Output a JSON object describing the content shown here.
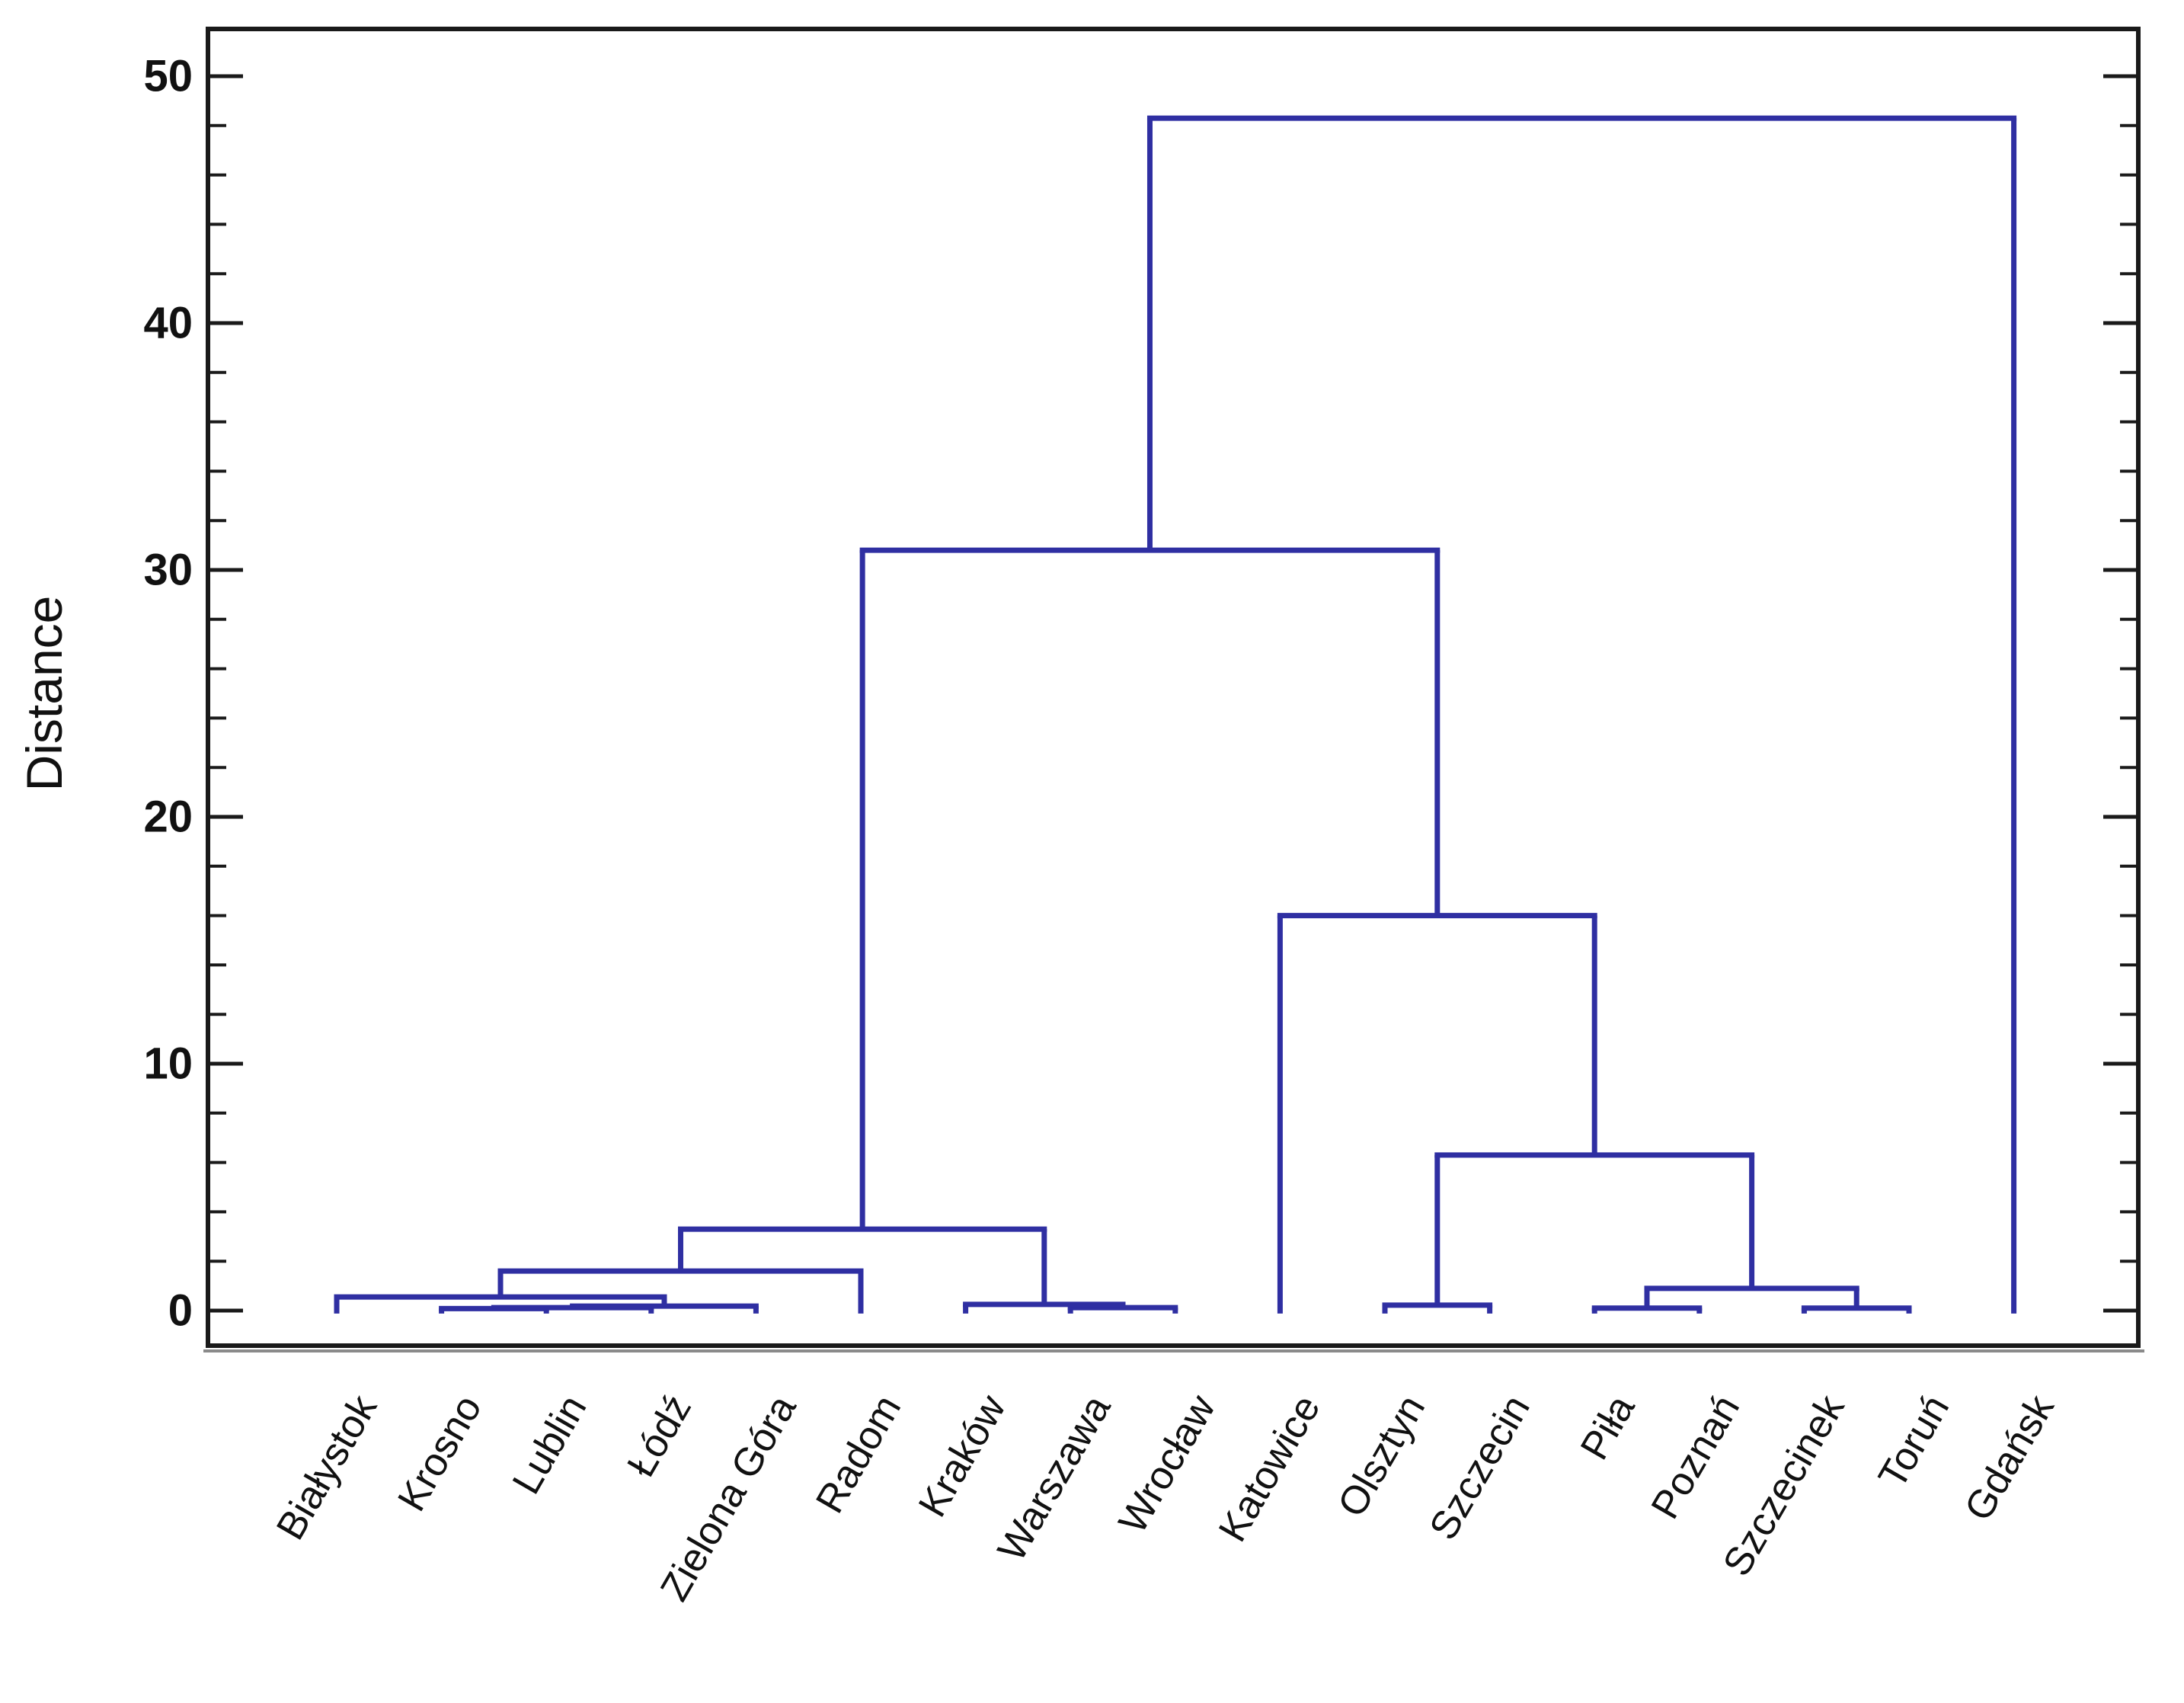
{
  "chart_data": {
    "type": "dendrogram",
    "title": "",
    "ylabel": "Distance",
    "ylim": [
      0,
      50
    ],
    "y_axis_top": 51.9,
    "y_axis_bottom": -1.4,
    "y_major_ticks": [
      "0",
      "10",
      "20",
      "30",
      "40",
      "50"
    ],
    "y_major_values": [
      0,
      10,
      20,
      30,
      40,
      50
    ],
    "y_minor_step": 2,
    "grid": "off",
    "legend": "none",
    "leaves": [
      "Białystok",
      "Krosno",
      "Lublin",
      "Łódź",
      "Zielona Góra",
      "Radom",
      "Kraków",
      "Warszawa",
      "Wrocław",
      "Katowice",
      "Olsztyn",
      "Szczecin",
      "Piła",
      "Poznań",
      "Szczecinek",
      "Toruń",
      "Gdańsk"
    ],
    "leaf_baseline_distance": -0.12,
    "merges": [
      {
        "id": "m1",
        "a": "Krosno",
        "b": "Lublin",
        "d": 0.08
      },
      {
        "id": "m2",
        "a": "m1",
        "b": "Łódź",
        "d": 0.12
      },
      {
        "id": "m3",
        "a": "m2",
        "b": "Zielona Góra",
        "d": 0.18
      },
      {
        "id": "m4",
        "a": "Białystok",
        "b": "m3",
        "d": 0.55
      },
      {
        "id": "m5",
        "a": "m4",
        "b": "Radom",
        "d": 1.6
      },
      {
        "id": "m6",
        "a": "Warszawa",
        "b": "Wrocław",
        "d": 0.12
      },
      {
        "id": "m7",
        "a": "Kraków",
        "b": "m6",
        "d": 0.25
      },
      {
        "id": "m8",
        "a": "m5",
        "b": "m7",
        "d": 3.3
      },
      {
        "id": "m9",
        "a": "Olsztyn",
        "b": "Szczecin",
        "d": 0.22
      },
      {
        "id": "m10",
        "a": "Piła",
        "b": "Poznań",
        "d": 0.1
      },
      {
        "id": "m11",
        "a": "Szczecinek",
        "b": "Toruń",
        "d": 0.1
      },
      {
        "id": "m12",
        "a": "m10",
        "b": "m11",
        "d": 0.9
      },
      {
        "id": "m13",
        "a": "m9",
        "b": "m12",
        "d": 6.3
      },
      {
        "id": "m14",
        "a": "Katowice",
        "b": "m13",
        "d": 16.0
      },
      {
        "id": "m15",
        "a": "m8",
        "b": "m14",
        "d": 30.8
      },
      {
        "id": "m16",
        "a": "m15",
        "b": "Gdańsk",
        "d": 48.3
      }
    ],
    "colors": {
      "line": "#2f2fa2",
      "axis": "#1a1a1a",
      "tick_label": "#111111",
      "background": "#ffffff",
      "border_shadow": "#8a8a8a"
    }
  }
}
